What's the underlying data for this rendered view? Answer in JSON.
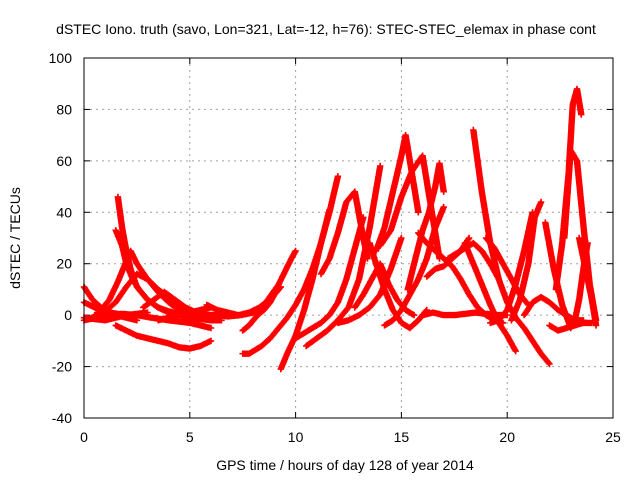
{
  "chart_data": {
    "type": "scatter",
    "title": "dSTEC Iono. truth (savo, Lon=321, Lat=-12, h=76): STEC-STEC_elemax in phase cont",
    "xlabel": "GPS time / hours of day 128 of year 2014",
    "ylabel": "dSTEC  / TECUs",
    "xlim": [
      0,
      25
    ],
    "ylim": [
      -40,
      100
    ],
    "xticks": [
      0,
      5,
      10,
      15,
      20,
      25
    ],
    "yticks": [
      -40,
      -20,
      0,
      20,
      40,
      60,
      80,
      100
    ],
    "grid": true,
    "marker": "+",
    "color": "#ff0000",
    "series": [
      {
        "x": [
          0.0,
          0.4,
          0.8,
          1.2,
          1.6,
          2.0
        ],
        "y": [
          11,
          6,
          3,
          1,
          0.5,
          0
        ]
      },
      {
        "x": [
          0.0,
          0.5,
          1.0,
          1.5,
          2.0,
          2.5,
          3.0
        ],
        "y": [
          -1,
          -1.5,
          -2,
          -1,
          0,
          0.5,
          1
        ]
      },
      {
        "x": [
          0.0,
          0.6,
          1.2,
          1.8,
          2.5,
          3.2,
          4.0,
          5.0,
          6.0
        ],
        "y": [
          -2,
          -1,
          0,
          0.5,
          0,
          -1,
          -2,
          -3,
          -5
        ]
      },
      {
        "x": [
          0.0,
          0.5,
          1.0,
          1.5,
          2.0,
          2.5
        ],
        "y": [
          5,
          3,
          1,
          0,
          -1,
          -2
        ]
      },
      {
        "x": [
          0.5,
          1.0,
          1.5,
          2.0,
          2.5,
          3.0,
          3.5,
          4.0,
          4.5,
          5.0,
          5.5,
          6.0
        ],
        "y": [
          0,
          1.5,
          5,
          11,
          16,
          14,
          9,
          5,
          2,
          0,
          -1,
          -1
        ]
      },
      {
        "x": [
          0.8,
          1.2,
          1.6,
          2.0,
          2.2,
          2.5,
          3.0,
          3.5,
          4.0,
          4.5,
          5.0,
          5.5,
          6.0,
          6.5
        ],
        "y": [
          2,
          6,
          13,
          21,
          25,
          20,
          14,
          10,
          7,
          4,
          2,
          0.5,
          0,
          0
        ]
      },
      {
        "x": [
          1.6,
          1.8,
          2.0,
          2.2,
          2.5,
          3.0,
          3.5,
          4.0,
          4.5,
          5.0,
          5.5,
          6.0,
          6.5
        ],
        "y": [
          46,
          34,
          25,
          18,
          11,
          6,
          3,
          1,
          0,
          -1,
          -1.5,
          -2,
          -2
        ]
      },
      {
        "x": [
          1.5,
          1.8,
          2.0,
          2.3,
          2.6,
          3.0,
          3.5,
          4.0,
          4.5,
          5.0,
          5.5
        ],
        "y": [
          33,
          27,
          20,
          14,
          10,
          6,
          3,
          1.5,
          0.5,
          0,
          0
        ]
      },
      {
        "x": [
          1.5,
          2.0,
          2.5,
          3.0,
          3.5,
          4.0,
          4.5,
          5.0,
          5.5,
          6.0
        ],
        "y": [
          -4,
          -6,
          -8,
          -9,
          -10,
          -11,
          -12.5,
          -13,
          -12,
          -10
        ]
      },
      {
        "x": [
          2.8,
          3.3,
          3.8,
          4.3,
          4.8,
          5.3,
          5.8,
          6.3
        ],
        "y": [
          3,
          6,
          9,
          6,
          3,
          1,
          0,
          0
        ]
      },
      {
        "x": [
          3.5,
          4.0,
          4.5,
          5.0,
          5.5,
          6.0
        ],
        "y": [
          -2,
          -1,
          0,
          1,
          2,
          3
        ]
      },
      {
        "x": [
          5.8,
          6.3,
          6.8,
          7.3,
          7.8,
          8.3,
          8.8
        ],
        "y": [
          4,
          2,
          1,
          0,
          1,
          3,
          6
        ]
      },
      {
        "x": [
          6.2,
          6.8,
          7.4,
          8.0,
          8.6,
          9.2,
          9.8,
          10.0
        ],
        "y": [
          0,
          -0.5,
          0,
          1,
          5,
          12,
          22,
          25
        ]
      },
      {
        "x": [
          7.5,
          7.8,
          8.0,
          8.2,
          8.5,
          8.8,
          9.0,
          9.3
        ],
        "y": [
          -6,
          -4,
          -2,
          0,
          2,
          5,
          8,
          11
        ]
      },
      {
        "x": [
          7.5,
          7.8,
          8.0,
          8.4,
          8.8,
          9.2,
          9.6,
          10.0,
          10.4,
          10.8,
          11.2,
          11.6,
          12.0
        ],
        "y": [
          -15,
          -15,
          -14,
          -12,
          -9,
          -5,
          -1,
          4,
          10,
          18,
          28,
          40,
          54
        ]
      },
      {
        "x": [
          9.3,
          9.6,
          10.0,
          10.4,
          10.8,
          11.2,
          11.6
        ],
        "y": [
          -21,
          -15,
          -8,
          2,
          14,
          28,
          41
        ]
      },
      {
        "x": [
          10.0,
          10.4,
          10.8,
          11.2,
          11.6,
          12.0,
          12.4,
          12.8,
          13.2
        ],
        "y": [
          -9,
          -7,
          -5,
          -3,
          0,
          5,
          14,
          26,
          38
        ]
      },
      {
        "x": [
          10.5,
          11.0,
          11.5,
          12.0,
          12.5,
          13.0,
          13.5,
          14.0
        ],
        "y": [
          -12,
          -9,
          -6,
          -2,
          3,
          14,
          34,
          58
        ]
      },
      {
        "x": [
          11.2,
          11.6,
          12.0,
          12.4,
          12.8,
          13.2,
          13.4
        ],
        "y": [
          16,
          22,
          32,
          44,
          48,
          30,
          22
        ]
      },
      {
        "x": [
          12.0,
          12.5,
          13.0,
          13.5,
          14.0,
          14.5,
          15.0
        ],
        "y": [
          -3,
          -2,
          0,
          3,
          8,
          18,
          30
        ]
      },
      {
        "x": [
          12.8,
          13.2,
          13.6,
          14.0,
          14.4,
          14.8,
          15.2,
          15.6
        ],
        "y": [
          3,
          8,
          14,
          20,
          12,
          6,
          2,
          0
        ]
      },
      {
        "x": [
          13.5,
          13.8,
          14.2,
          14.6,
          15.0,
          15.4,
          15.8,
          16.2
        ],
        "y": [
          28,
          20,
          10,
          2,
          -3,
          -5,
          -2,
          2
        ]
      },
      {
        "x": [
          13.8,
          14.2,
          14.6,
          15.0,
          15.2,
          15.5,
          15.8
        ],
        "y": [
          25,
          34,
          48,
          62,
          70,
          55,
          40
        ]
      },
      {
        "x": [
          14.2,
          14.6,
          15.0,
          15.4,
          15.8,
          16.2,
          16.6,
          17.0
        ],
        "y": [
          -4,
          -2,
          2,
          8,
          14,
          22,
          34,
          42
        ]
      },
      {
        "x": [
          14.0,
          14.5,
          15.0,
          15.5,
          16.0,
          16.4,
          16.8
        ],
        "y": [
          27,
          33,
          46,
          56,
          62,
          42,
          22
        ]
      },
      {
        "x": [
          15.3,
          15.6,
          16.0,
          16.3,
          16.6,
          16.8,
          17.0
        ],
        "y": [
          10,
          20,
          33,
          40,
          50,
          59,
          48
        ]
      },
      {
        "x": [
          15.8,
          16.2,
          16.6,
          17.0,
          17.4,
          17.8,
          18.2,
          18.6,
          19.0,
          19.4,
          19.8
        ],
        "y": [
          32,
          28,
          25,
          22,
          19,
          14,
          8,
          3,
          0,
          -2,
          -3
        ]
      },
      {
        "x": [
          16.2,
          16.6,
          17.0,
          17.4,
          17.8,
          18.2
        ],
        "y": [
          15,
          18,
          19,
          22,
          25,
          30
        ]
      },
      {
        "x": [
          16.0,
          16.5,
          17.0,
          17.5,
          18.0,
          18.5,
          19.0,
          19.5,
          20.0
        ],
        "y": [
          0,
          1,
          0,
          0,
          0.5,
          1,
          0.5,
          0,
          0
        ]
      },
      {
        "x": [
          17.2,
          17.6,
          18.0,
          18.4,
          18.8,
          19.2,
          19.6
        ],
        "y": [
          22,
          24,
          26,
          28,
          25,
          20,
          14
        ]
      },
      {
        "x": [
          18.4,
          18.8,
          19.2,
          19.6,
          20.0,
          20.4,
          20.8,
          21.2,
          21.6,
          22.0
        ],
        "y": [
          72,
          48,
          28,
          14,
          5,
          -1,
          -5,
          -10,
          -15,
          -19
        ]
      },
      {
        "x": [
          18.0,
          18.4,
          18.8,
          19.2,
          19.6,
          20.0,
          20.4
        ],
        "y": [
          28,
          20,
          12,
          4,
          -3,
          -8,
          -14
        ]
      },
      {
        "x": [
          19.0,
          19.4,
          19.8,
          20.2,
          20.6,
          21.0
        ],
        "y": [
          30,
          26,
          20,
          14,
          8,
          4
        ]
      },
      {
        "x": [
          19.2,
          19.6,
          20.0,
          20.4,
          20.8,
          21.2
        ],
        "y": [
          -3,
          -2,
          2,
          12,
          25,
          40
        ]
      },
      {
        "x": [
          20.2,
          20.6,
          21.0,
          21.3,
          21.6
        ],
        "y": [
          -2,
          6,
          20,
          38,
          44
        ]
      },
      {
        "x": [
          20.8,
          21.2,
          21.6,
          22.0,
          22.4,
          22.8,
          23.2,
          23.6
        ],
        "y": [
          0,
          5,
          7,
          5,
          2,
          0,
          -2,
          -2
        ]
      },
      {
        "x": [
          21.8,
          22.2,
          22.6,
          23.0,
          23.2,
          23.4,
          23.6,
          23.8
        ],
        "y": [
          36,
          18,
          4,
          -5,
          -2,
          6,
          18,
          28
        ]
      },
      {
        "x": [
          22.0,
          22.4,
          22.8,
          23.2,
          23.6,
          24.0
        ],
        "y": [
          -4,
          -6,
          -5,
          -4,
          -3,
          -3
        ]
      },
      {
        "x": [
          22.3,
          22.6,
          22.9,
          23.1,
          23.3,
          23.5
        ],
        "y": [
          10,
          28,
          55,
          82,
          88,
          78
        ]
      },
      {
        "x": [
          22.7,
          23.0,
          23.3,
          23.6,
          23.9,
          24.2
        ],
        "y": [
          30,
          64,
          60,
          35,
          12,
          -2
        ]
      },
      {
        "x": [
          23.4,
          23.7,
          24.0,
          24.2
        ],
        "y": [
          30,
          18,
          6,
          -4
        ]
      }
    ]
  }
}
